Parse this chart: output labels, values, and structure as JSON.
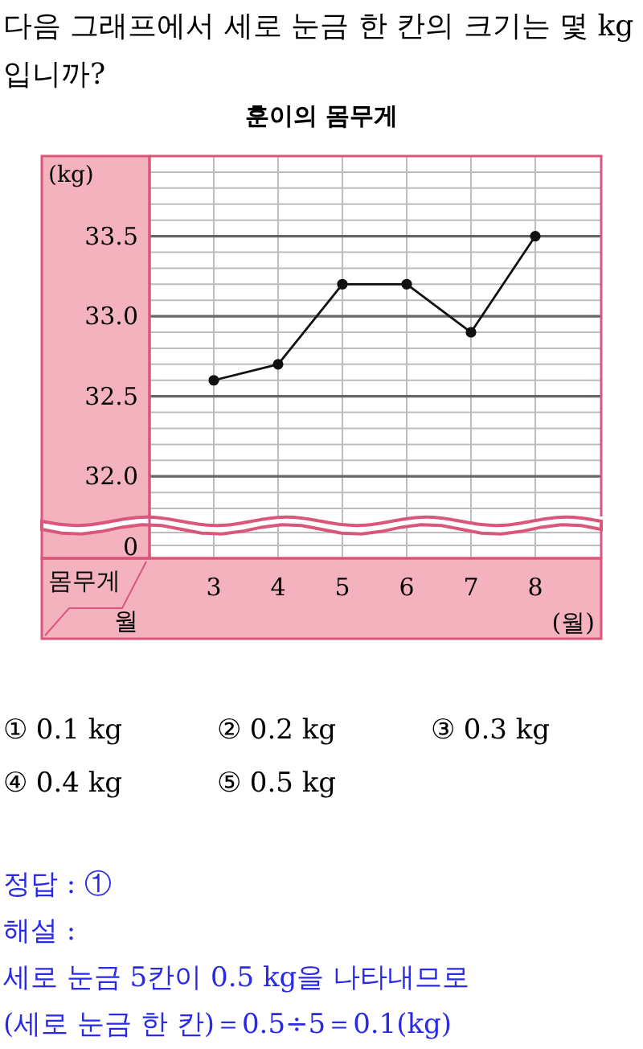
{
  "chart_data": {
    "type": "line",
    "title": "훈이의 몸무게",
    "ylabel": "(kg)",
    "xlabel": "(월)",
    "categories": [
      "3",
      "4",
      "5",
      "6",
      "7",
      "8"
    ],
    "series": [
      {
        "color": "#111111",
        "values": [
          32.6,
          32.7,
          33.2,
          33.2,
          32.9,
          33.5
        ]
      }
    ],
    "ylim": [
      31.75,
      34.0
    ],
    "yticks": [
      {
        "value": 31.8,
        "label": null
      },
      {
        "value": 31.9,
        "label": null
      },
      {
        "value": 32.0,
        "label": "32.0"
      },
      {
        "value": 32.1,
        "label": null
      },
      {
        "value": 32.2,
        "label": null
      },
      {
        "value": 32.3,
        "label": null
      },
      {
        "value": 32.4,
        "label": null
      },
      {
        "value": 32.5,
        "label": "32.5"
      },
      {
        "value": 32.6,
        "label": null
      },
      {
        "value": 32.7,
        "label": null
      },
      {
        "value": 32.8,
        "label": null
      },
      {
        "value": 32.9,
        "label": null
      },
      {
        "value": 33.0,
        "label": "33.0"
      },
      {
        "value": 33.1,
        "label": null
      },
      {
        "value": 33.2,
        "label": null
      },
      {
        "value": 33.3,
        "label": null
      },
      {
        "value": 33.4,
        "label": null
      },
      {
        "value": 33.5,
        "label": "33.5"
      },
      {
        "value": 33.6,
        "label": null
      },
      {
        "value": 33.7,
        "label": null
      },
      {
        "value": 33.8,
        "label": null
      },
      {
        "value": 33.9,
        "label": null
      }
    ],
    "grid": true,
    "marker": "circle",
    "line_style": "solid",
    "annotations": [
      "다음 그래프에서 세로 눈금 한 칸의 크기는 몇 kg입니까?",
      "① 0.1 kg",
      "② 0.2 kg",
      "③ 0.3 kg",
      "④ 0.4 kg",
      "⑤ 0.5 kg",
      "정답 : ①",
      "해설 :",
      "세로 눈금 5칸이 0.5 kg을 나타내므로",
      "(세로 눈금 한 칸)＝0.5÷5＝0.1(kg)",
      "0",
      "몸무게",
      "월"
    ]
  }
}
